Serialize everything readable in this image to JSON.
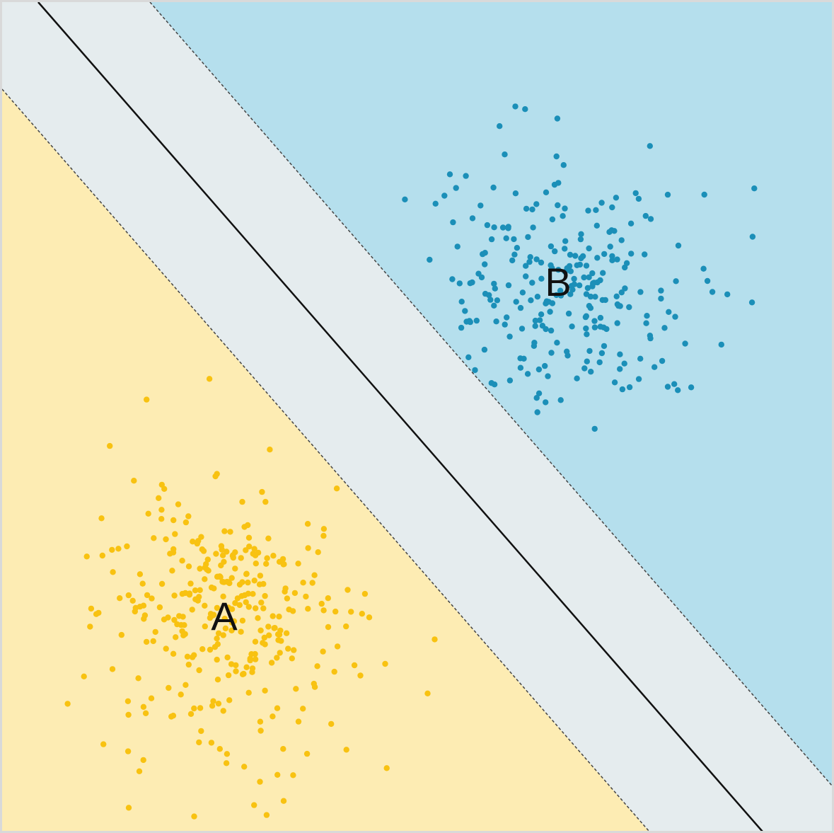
{
  "labels": {
    "class_a": "A",
    "class_b": "B"
  },
  "colors": {
    "region_a": "#fdecb3",
    "region_b": "#b5dfed",
    "margin": "#e5ecee",
    "points_a": "#f8c211",
    "points_b": "#1b8fb8",
    "boundary": "#111111",
    "margin_edge": "#444444",
    "frame": "#d9d9d9"
  },
  "clusters": {
    "a": {
      "seed": 1,
      "count": 330,
      "spread": 95
    },
    "b": {
      "seed": 7,
      "count": 260,
      "spread": 88
    }
  }
}
